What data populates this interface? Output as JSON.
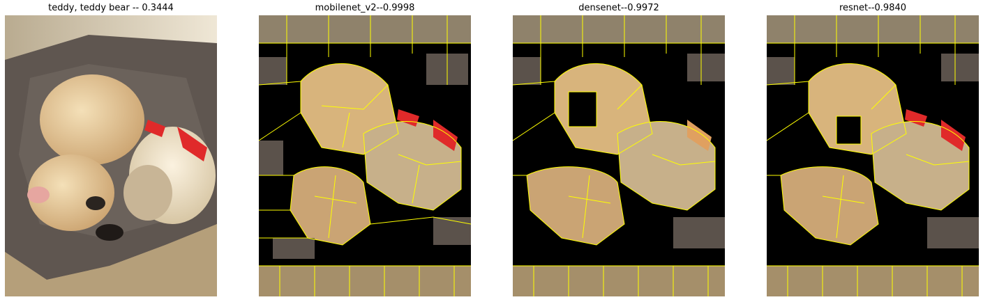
{
  "panels": [
    {
      "title": "teddy, teddy bear -- 0.3444",
      "image": "dog-with-teddy-bear-photo"
    },
    {
      "title": "mobilenet_v2--0.9998",
      "image": "lime-superpixel-mask-dog-photo"
    },
    {
      "title": "densenet--0.9972",
      "image": "lime-superpixel-mask-dog-photo"
    },
    {
      "title": "resnet--0.9840",
      "image": "lime-superpixel-mask-dog-photo"
    }
  ],
  "colors": {
    "boundary": "#ffff00",
    "masked": "#000000",
    "fur": "#d8b47c",
    "bed": "#5f5650",
    "carpet": "#a58f6a",
    "toy_ribbon": "#e02a2a"
  }
}
